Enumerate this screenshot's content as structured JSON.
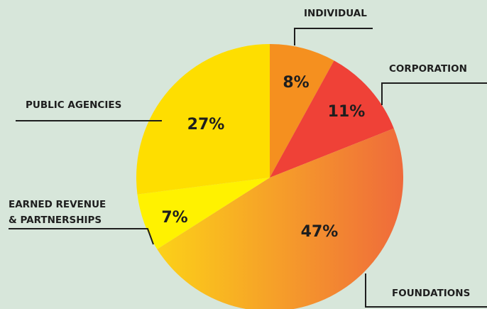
{
  "chart_data": {
    "type": "pie",
    "categories": [
      "INDIVIDUAL",
      "CORPORATION",
      "FOUNDATIONS",
      "EARNED REVENUE\n& PARTNERSHIPS",
      "PUBLIC AGENCIES"
    ],
    "values": [
      8,
      11,
      47,
      7,
      27
    ],
    "value_labels": [
      "8%",
      "11%",
      "47%",
      "7%",
      "27%"
    ],
    "colors": [
      "#f5901f",
      "#ef4137",
      [
        "#fcd118",
        "#ef6a3b"
      ],
      "#fff200",
      "#fede00"
    ]
  }
}
